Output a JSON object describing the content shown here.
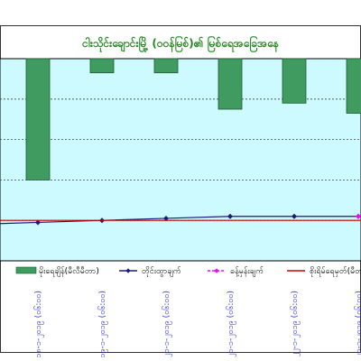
{
  "chart_data": {
    "type": "bar+line",
    "title": "ငါးသိုင်းချောင်းမြို့ (ဝဝန်မြစ်)၏ မြစ်ရေအခြေအနေ",
    "categories": [
      "၁၈-၁-၂၀၁၉ (၀၆:၀၀)",
      "၁၉-၁-၂၀၁၉ (၀၆:၀၀)",
      "၂၀-၁-၂၀၁၉ (၀၆:၀၀)",
      "၂၁-၁-၂၀၁၉ (၀၆:၀၀)",
      "၂၂-၁-၂၀၁၉ (၀၆:၀၀)",
      "၂၃-၁-၂၀၁၉ (၀၆:၀၀)"
    ],
    "series": [
      {
        "name": "မိုးရေချိန်(မီလီမီတာ)",
        "type": "bar",
        "axis": "top-reversed",
        "color": "#3f9b5f",
        "values": [
          60,
          7,
          7,
          25,
          22,
          27
        ]
      },
      {
        "name": "တိုင်းထွာချက်",
        "type": "line",
        "color": "#1a1a7a",
        "marker": "diamond",
        "values": [
          1.9,
          2.0,
          2.1,
          2.2,
          2.2,
          2.2
        ]
      },
      {
        "name": "ခန့်မှန်းချက်",
        "type": "line",
        "color": "#ff00ff",
        "dash": true,
        "marker": "diamond",
        "values": [
          null,
          null,
          null,
          null,
          null,
          2.2
        ]
      },
      {
        "name": "စိုးရိမ်ရေမှတ်(မီတာ)",
        "type": "line",
        "color": "#cc0000",
        "values": [
          2.0,
          2.0,
          2.0,
          2.0,
          2.0,
          2.0
        ]
      }
    ],
    "ylim": [
      0,
      10
    ],
    "rain_lim": [
      0,
      100
    ],
    "grid": true,
    "plot_background": "#ccfaff",
    "legend_position": "bottom"
  }
}
